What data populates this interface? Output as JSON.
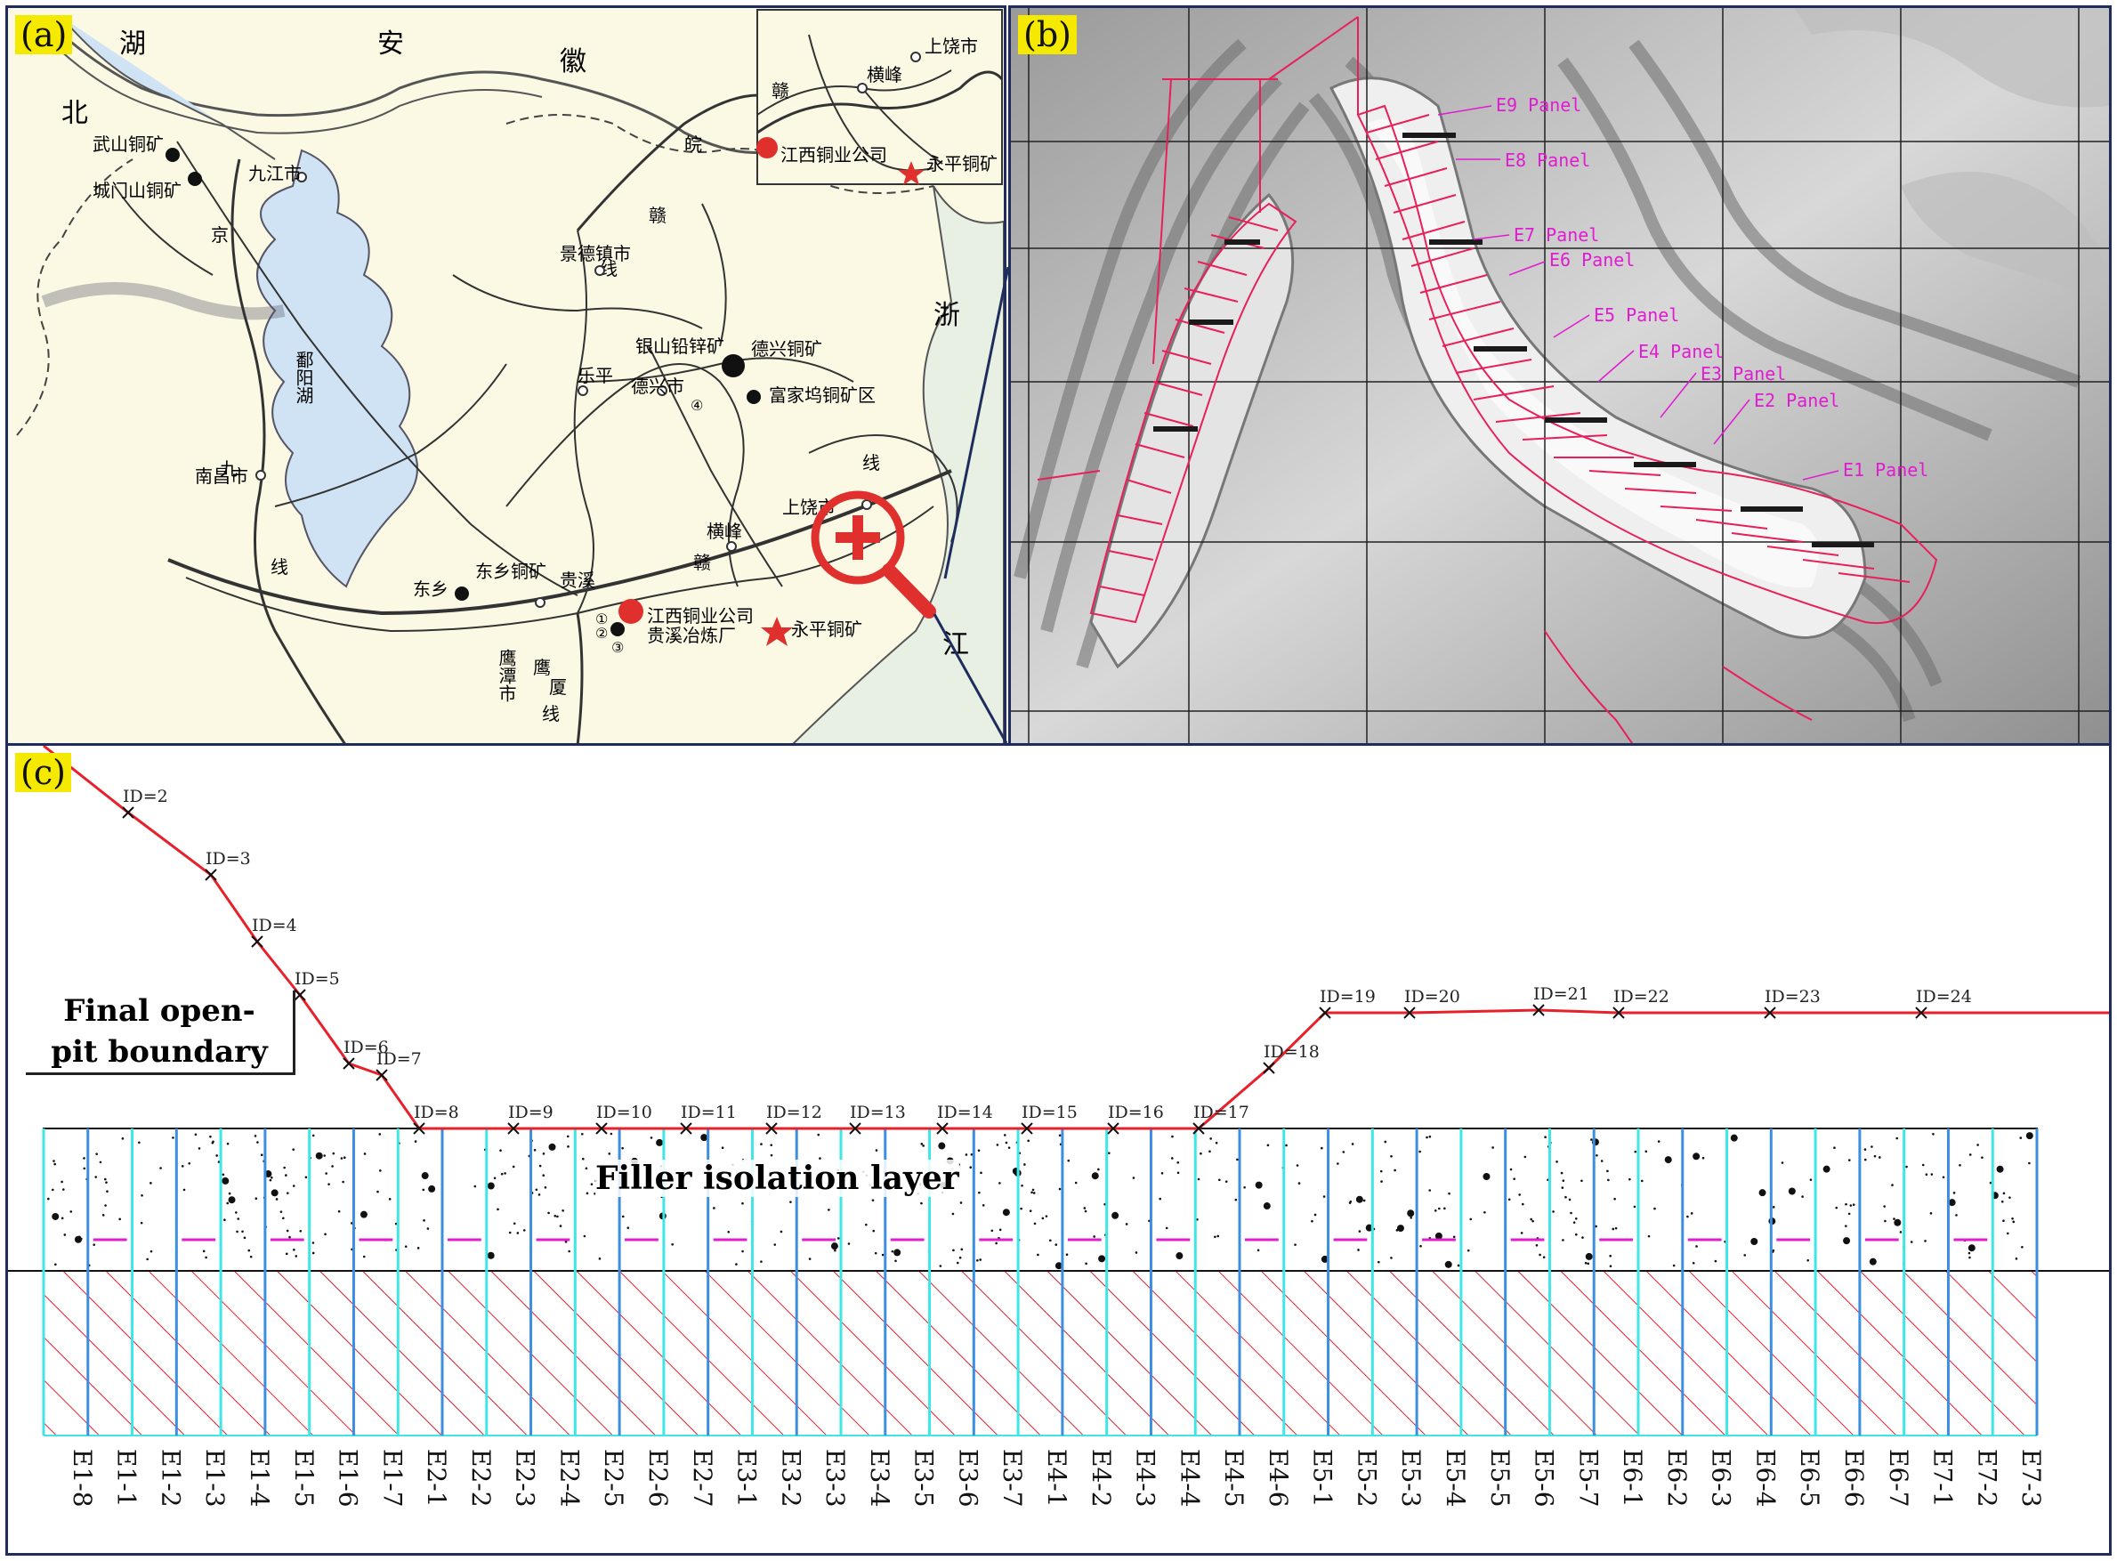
{
  "panels": {
    "a": {
      "tag": "(a)"
    },
    "b": {
      "tag": "(b)"
    },
    "c": {
      "tag": "(c)"
    }
  },
  "map_a": {
    "province_chars": [
      "湖",
      "北",
      "安",
      "徽",
      "浙",
      "江"
    ],
    "cities": [
      "九江市",
      "景德镇市",
      "乐平",
      "德兴市",
      "上饶市",
      "横峰",
      "南昌市",
      "鹰潭市",
      "贵溪",
      "东乡"
    ],
    "mines": [
      "武山铜矿",
      "城门山铜矿",
      "银山铅锌矿",
      "德兴铜矿",
      "富家坞铜矿区",
      "东乡铜矿",
      "永平铜矿"
    ],
    "companies": [
      "江西铜业公司",
      "贵溪冶炼厂"
    ],
    "lake": "鄱阳湖",
    "rail_chars": [
      "京",
      "九",
      "线",
      "赣",
      "线",
      "皖",
      "赣",
      "线",
      "鹰",
      "厦",
      "线"
    ],
    "site_numbers": [
      "①",
      "②",
      "③",
      "④"
    ],
    "inset": {
      "cities": [
        "上饶市",
        "横峰"
      ],
      "company": "江西铜业公司",
      "mine": "永平铜矿",
      "rail_char": "赣"
    }
  },
  "mine_b": {
    "panels": [
      "E9 Panel",
      "E8 Panel",
      "E7 Panel",
      "E6 Panel",
      "E5 Panel",
      "E4 Panel",
      "E3 Panel",
      "E2 Panel",
      "E1 Panel"
    ]
  },
  "section_c": {
    "boundary_label": "Final open-pit boundary",
    "boundary_label_line1": "Final open-",
    "boundary_label_line2": "pit boundary",
    "filler_label": "Filler isolation layer",
    "boundary_points": [
      {
        "id": "ID=2"
      },
      {
        "id": "ID=3"
      },
      {
        "id": "ID=4"
      },
      {
        "id": "ID=5"
      },
      {
        "id": "ID=6"
      },
      {
        "id": "ID=7"
      },
      {
        "id": "ID=8"
      },
      {
        "id": "ID=9"
      },
      {
        "id": "ID=10"
      },
      {
        "id": "ID=11"
      },
      {
        "id": "ID=12"
      },
      {
        "id": "ID=13"
      },
      {
        "id": "ID=14"
      },
      {
        "id": "ID=15"
      },
      {
        "id": "ID=16"
      },
      {
        "id": "ID=17"
      },
      {
        "id": "ID=18"
      },
      {
        "id": "ID=19"
      },
      {
        "id": "ID=20"
      },
      {
        "id": "ID=21"
      },
      {
        "id": "ID=22"
      },
      {
        "id": "ID=23"
      },
      {
        "id": "ID=24"
      }
    ],
    "stopes": [
      "E1-8",
      "E1-1",
      "E1-2",
      "E1-3",
      "E1-4",
      "E1-5",
      "E1-6",
      "E1-7",
      "E2-1",
      "E2-2",
      "E2-3",
      "E2-4",
      "E2-5",
      "E2-6",
      "E2-7",
      "E3-1",
      "E3-2",
      "E3-3",
      "E3-4",
      "E3-5",
      "E3-6",
      "E3-7",
      "E4-1",
      "E4-2",
      "E4-3",
      "E4-4",
      "E4-5",
      "E4-6",
      "E5-1",
      "E5-2",
      "E5-3",
      "E5-4",
      "E5-5",
      "E5-6",
      "E5-7",
      "E6-1",
      "E6-2",
      "E6-3",
      "E6-4",
      "E6-5",
      "E6-6",
      "E6-7",
      "E7-1",
      "E7-2",
      "E7-3"
    ]
  },
  "colors": {
    "boundary_line": "#e8202a",
    "hatch": "#e8202a",
    "pillar_blue": "#3c8fe0",
    "pillar_cyan": "#3fe6e6",
    "magenta": "#e01bd0",
    "panel_border": "#1f2d5c",
    "lake": "#cfe3f4",
    "tag": "#f5e900"
  }
}
